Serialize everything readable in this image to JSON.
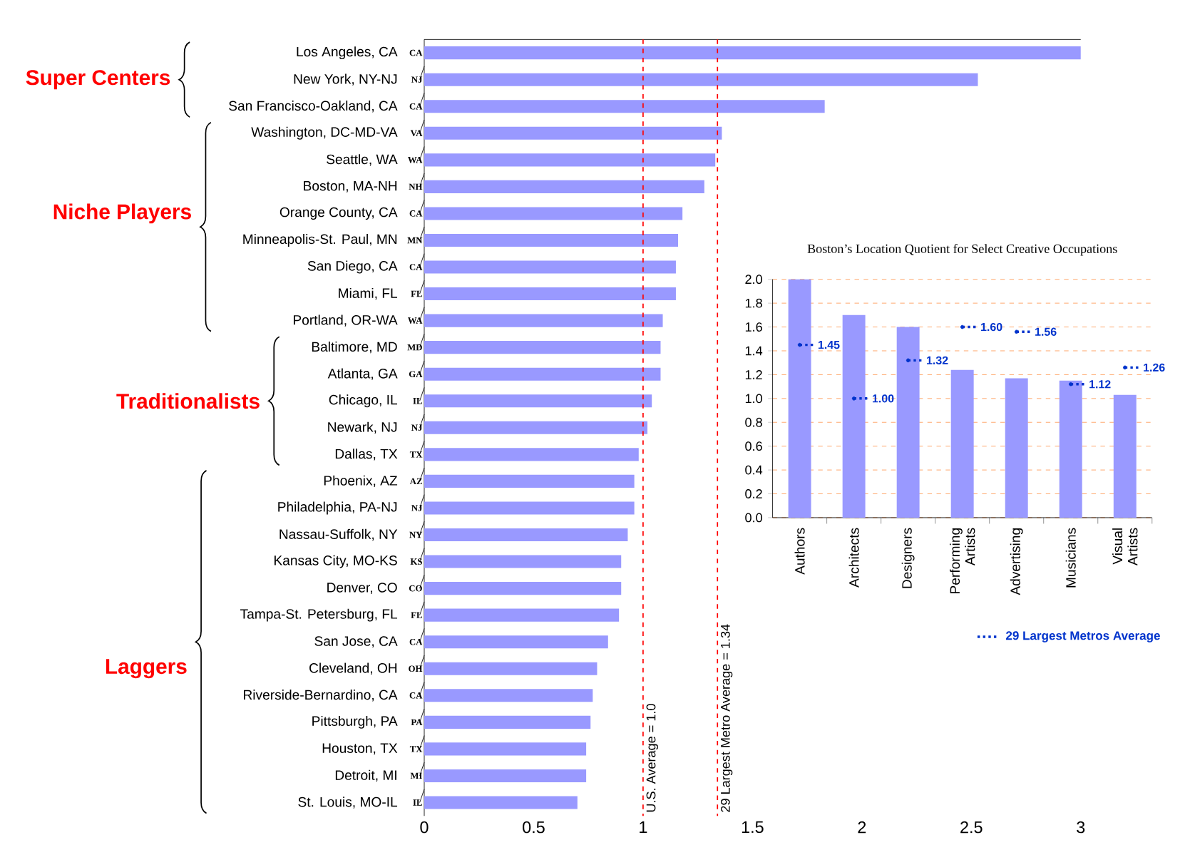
{
  "chart_data": [
    {
      "type": "bar",
      "orientation": "horizontal",
      "color": "#9999ff",
      "categories": [
        "Los Angeles, CA",
        "New York, NY-NJ",
        "San Francisco-Oakland, CA",
        "Washington, DC-MD-VA",
        "Seattle, WA",
        "Boston, MA-NH",
        "Orange County, CA",
        "Minneapolis-St. Paul, MN",
        "San Diego, CA",
        "Miami, FL",
        "Portland, OR-WA",
        "Baltimore, MD",
        "Atlanta, GA",
        "Chicago, IL",
        "Newark, NJ",
        "Dallas, TX",
        "Phoenix, AZ",
        "Philadelphia, PA-NJ",
        "Nassau-Suffolk, NY",
        "Kansas City, MO-KS",
        "Denver, CO",
        "Tampa-St. Petersburg, FL",
        "San Jose, CA",
        "Cleveland, OH",
        "Riverside-Bernardino, CA",
        "Pittsburgh, PA",
        "Houston, TX",
        "Detroit, MI",
        "St. Louis, MO-IL"
      ],
      "values": [
        3.0,
        2.53,
        1.83,
        1.36,
        1.33,
        1.28,
        1.18,
        1.16,
        1.15,
        1.15,
        1.09,
        1.08,
        1.08,
        1.04,
        1.02,
        0.98,
        0.96,
        0.96,
        0.93,
        0.9,
        0.9,
        0.89,
        0.84,
        0.79,
        0.77,
        0.76,
        0.74,
        0.74,
        0.7
      ],
      "xlim": [
        0,
        3
      ],
      "xticks": [
        0,
        0.5,
        1,
        1.5,
        2,
        2.5,
        3
      ],
      "ref_lines": [
        {
          "axis": "x",
          "value": 1.0,
          "label": "U.S. Average = 1.0",
          "color": "#ff0000",
          "line_style": "dashed"
        },
        {
          "axis": "x",
          "value": 1.34,
          "label": "29 Largest Metro Average = 1.34",
          "color": "#ff0000",
          "line_style": "dashed"
        }
      ],
      "annotations": [
        "Super Centers",
        "Niche Players",
        "Traditionalists",
        "Laggers",
        "CA",
        "NJ",
        "CA",
        "VA",
        "WA",
        "NH",
        "CA",
        "MN",
        "CA",
        "FL",
        "WA",
        "MD",
        "GA",
        "IL",
        "NJ",
        "TX",
        "AZ",
        "NJ",
        "NY",
        "KS",
        "CO",
        "FL",
        "CA",
        "OH",
        "CA",
        "PA",
        "TX",
        "MI",
        "IL"
      ]
    },
    {
      "type": "bar",
      "title": "Boston’s Location Quotient for Select Creative Occupations",
      "categories": [
        "Authors",
        "Architects",
        "Designers",
        "Performing Artists",
        "Advertising",
        "Musicians",
        "Visual Artists"
      ],
      "series": [
        {
          "color": "#9999ff",
          "values": [
            2.0,
            1.7,
            1.6,
            1.24,
            1.17,
            1.15,
            1.03
          ]
        },
        {
          "name": "29 Largest Metros Average",
          "type": "scatter",
          "color": "#0033cc",
          "line_style": "dotted",
          "values": [
            1.45,
            1.0,
            1.32,
            1.6,
            1.56,
            1.12,
            1.26
          ],
          "value_labels": [
            "1.45",
            "1.00",
            "1.32",
            "1.60",
            "1.56",
            "1.12",
            "1.26"
          ]
        }
      ],
      "ylim": [
        0,
        2.0
      ],
      "yticks": [
        {
          "value": 0,
          "label": "0.0"
        },
        {
          "value": 0.2,
          "label": "0.2"
        },
        {
          "value": 0.4,
          "label": "0.4"
        },
        {
          "value": 0.6,
          "label": "0.6"
        },
        {
          "value": 0.8,
          "label": "0.8"
        },
        {
          "value": 1.0,
          "label": "1.0"
        },
        {
          "value": 1.2,
          "label": "1.2"
        },
        {
          "value": 1.4,
          "label": "1.4"
        },
        {
          "value": 1.6,
          "label": "1.6"
        },
        {
          "value": 1.8,
          "label": "1.8"
        },
        {
          "value": 2.0,
          "label": "2.0"
        }
      ],
      "grid": "y",
      "legend": "bottom"
    }
  ]
}
